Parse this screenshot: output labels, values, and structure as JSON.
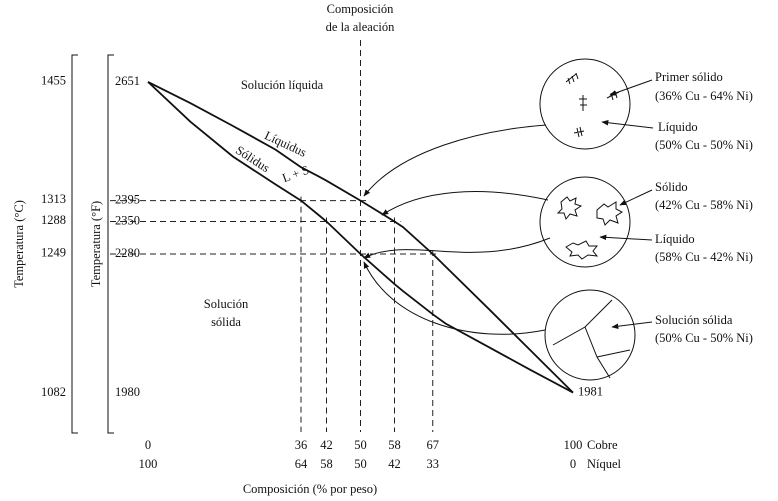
{
  "chart_data": {
    "type": "line",
    "title_lines": [
      "Composición",
      "de la aleación"
    ],
    "xlabel": "Composición (% por peso)",
    "ylabel": "Temperatura (°F)",
    "y2label": "Temperatura (°C)",
    "x": [
      0,
      10,
      20,
      30,
      36,
      40,
      42,
      50,
      58,
      60,
      67,
      70,
      80,
      90,
      100
    ],
    "series": [
      {
        "name": "Líquidus",
        "color": "#111111",
        "values": [
          2651,
          2605,
          2556,
          2505,
          2467,
          2448,
          2438,
          2395,
          2350,
          2338,
          2280,
          2253,
          2163,
          2072,
          1981
        ]
      },
      {
        "name": "Sólidus",
        "color": "#111111",
        "values": [
          2651,
          2565,
          2490,
          2430,
          2395,
          2365,
          2350,
          2280,
          2215,
          2200,
          2150,
          2130,
          2080,
          2030,
          1981
        ]
      }
    ],
    "xlim": [
      0,
      100
    ],
    "xticks": [
      0,
      36,
      42,
      50,
      58,
      67,
      100
    ],
    "xticks_ni": [
      100,
      64,
      58,
      50,
      42,
      33,
      0
    ],
    "x_end_labels": [
      "Cobre",
      "Níquel"
    ],
    "ylim": [
      1894,
      2709
    ],
    "yticks": [
      1980,
      2280,
      2350,
      2395,
      2651
    ],
    "y2lim": [
      1034,
      1487
    ],
    "y2ticks": [
      1082,
      1249,
      1288,
      1313,
      1455
    ],
    "end_value": 1981,
    "region_labels": [
      "Solución líquida",
      "L + S",
      "Solución",
      "sólida"
    ],
    "annotations": [
      "Primer sólido",
      "(36% Cu - 64% Ni)",
      "Líquido",
      "(50% Cu - 50% Ni)",
      "Sólido",
      "(42% Cu - 58% Ni)",
      "Líquido",
      "(58% Cu - 42% Ni)",
      "Solución sólida",
      "(50%  Cu - 50% Ni)"
    ]
  }
}
